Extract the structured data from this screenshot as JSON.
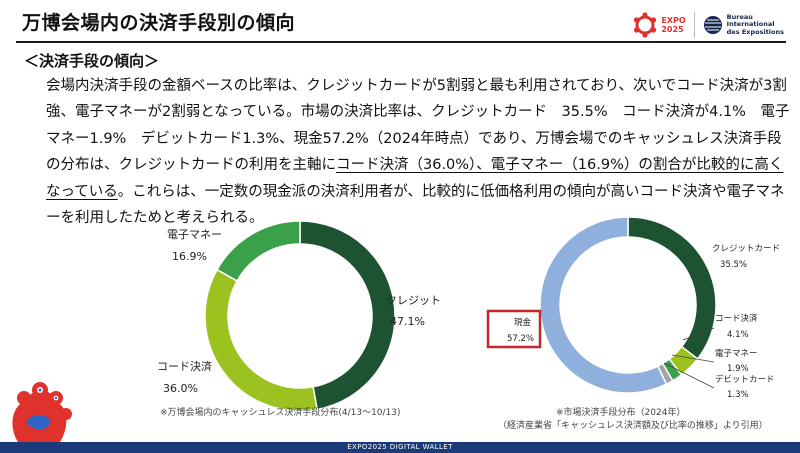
{
  "header": {
    "title": "万博会場内の決済手段別の傾向",
    "expo_logo_text": [
      "EXPO",
      "2025"
    ],
    "bie_logo_text": [
      "Bureau",
      "International",
      "des Expositions"
    ]
  },
  "section": {
    "heading": "＜決済手段の傾向＞"
  },
  "paragraph": {
    "part1": "会場内決済手段の金額ベースの比率は、クレジットカードが5割弱と最も利用されており、次いでコード決済が3割強、電子マネーが2割弱となっている。市場の決済比率は、クレジットカード　35.5%　コード決済が4.1%　電子マネー1.9%　デビットカード1.3%、現金57.2%（2024年時点）であり、万博会場でのキャッシュレス決済手段の分布は、クレジットカードの利用を主軸に",
    "underlined": "コード決済（36.0%）、電子マネー（16.9%）の割合が比較的に高くなっている",
    "part2": "。これらは、一定数の現金派の決済利用者が、比較的に低価格利用の傾向が高いコード決済や電子マネーを利用したためと考えられる。"
  },
  "chart_data": [
    {
      "type": "pie",
      "subtype": "donut",
      "categories": [
        "クレジット",
        "コード決済",
        "電子マネー"
      ],
      "values": [
        47.1,
        36.0,
        16.9
      ],
      "value_labels": [
        "47.1%",
        "36.0%",
        "16.9%"
      ],
      "colors": [
        "#1d5330",
        "#9bc21f",
        "#3aa14a"
      ],
      "note": "※万博会場内のキャッシュレス決済手段分布(4/13～10/13)"
    },
    {
      "type": "pie",
      "subtype": "donut",
      "categories": [
        "クレジットカード",
        "コード決済",
        "電子マネー",
        "デビットカード",
        "現金"
      ],
      "values": [
        35.5,
        4.1,
        1.9,
        1.3,
        57.2
      ],
      "value_labels": [
        "35.5%",
        "4.1%",
        "1.9%",
        "1.3%",
        "57.2%"
      ],
      "colors": [
        "#1d5330",
        "#9bc21f",
        "#3aa14a",
        "#a3a3a3",
        "#8fb0dc"
      ],
      "highlight": "現金",
      "highlight_color": "#c0282d",
      "note_lines": [
        "※市場決済手段分布（2024年）",
        "（経済産業省「キャッシュレス決済額及び比率の推移」より引用）"
      ]
    }
  ],
  "footer": {
    "text": "EXPO2025 DIGITAL WALLET"
  }
}
